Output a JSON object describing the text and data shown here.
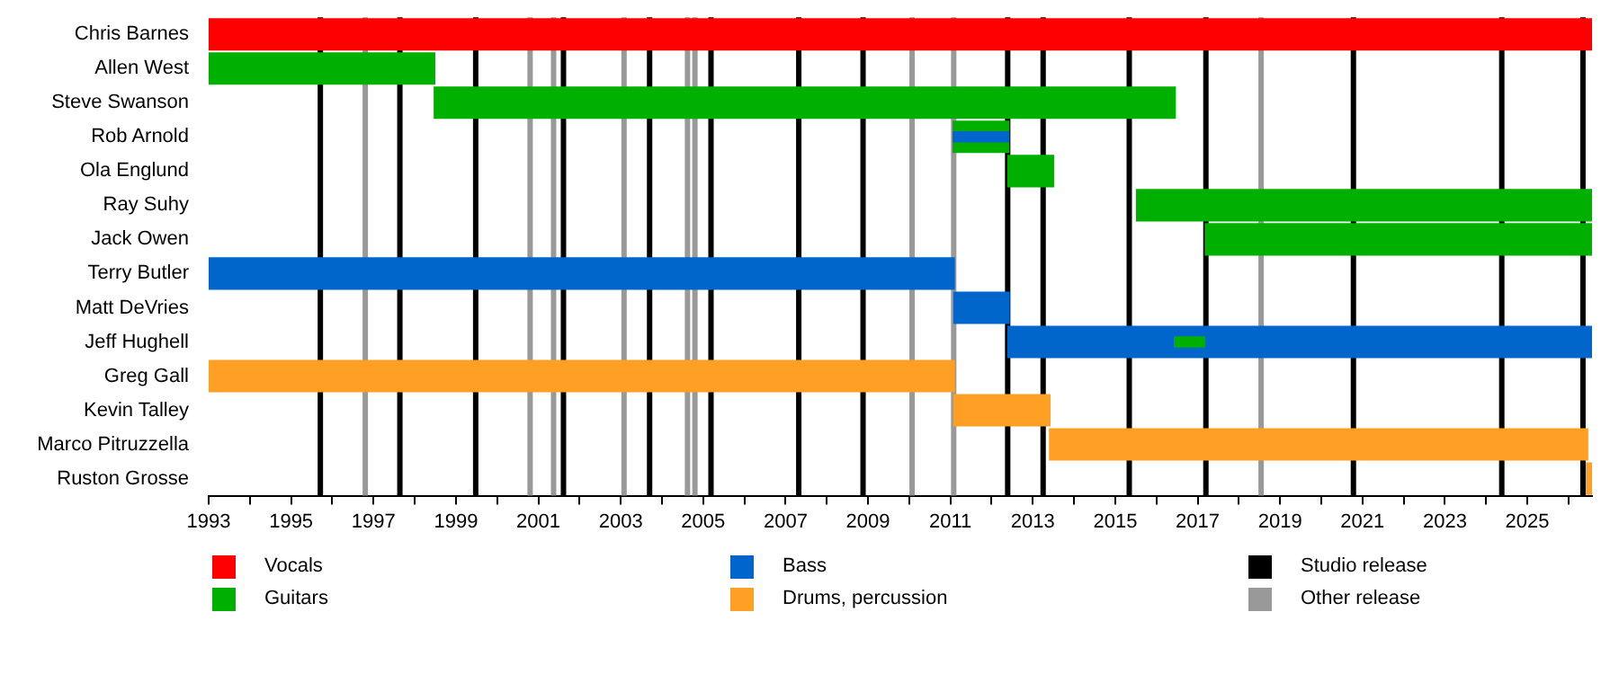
{
  "chart_data": {
    "type": "bar",
    "orientation": "horizontal",
    "categories": [
      "Chris Barnes",
      "Allen West",
      "Steve Swanson",
      "Rob Arnold",
      "Ola Englund",
      "Ray Suhy",
      "Jack Owen",
      "Terry Butler",
      "Matt DeVries",
      "Jeff Hughell",
      "Greg Gall",
      "Kevin Talley",
      "Marco Pitruzzella",
      "Ruston Grosse"
    ],
    "series": [
      {
        "name": "Vocals",
        "color": "#ff0000",
        "base": [
          1993,
          null,
          null,
          null,
          null,
          null,
          null,
          null,
          null,
          null,
          null,
          null,
          null,
          null
        ],
        "values": [
          33.57,
          null,
          null,
          null,
          null,
          null,
          null,
          null,
          null,
          null,
          null,
          null,
          null,
          null
        ]
      },
      {
        "name": "Guitars",
        "color": "#00b000",
        "base": [
          null,
          1993,
          1998.46,
          2011.05,
          2012.38,
          2015.5,
          2017.17,
          null,
          null,
          null,
          null,
          null,
          null,
          null
        ],
        "values": [
          null,
          5.5,
          18.01,
          1.38,
          1.14,
          11.07,
          9.4,
          null,
          null,
          null,
          null,
          null,
          null,
          null
        ]
      },
      {
        "name": "Bass",
        "color": "#0066cc",
        "base": [
          null,
          null,
          null,
          null,
          null,
          null,
          null,
          1993,
          2011.07,
          2012.38,
          null,
          null,
          null,
          null
        ],
        "values": [
          null,
          null,
          null,
          null,
          null,
          null,
          null,
          18.11,
          1.37,
          14.19,
          null,
          null,
          null,
          null
        ]
      },
      {
        "name": "Drums, percussion",
        "color": "#ffa024",
        "base": [
          null,
          null,
          null,
          null,
          null,
          null,
          null,
          null,
          null,
          null,
          1993,
          2011.07,
          2013.39,
          2026.42
        ],
        "values": [
          null,
          null,
          null,
          null,
          null,
          null,
          null,
          null,
          null,
          null,
          18.11,
          2.36,
          13.09,
          0.15
        ]
      },
      {
        "color": "#0066cc",
        "base": [
          null,
          null,
          null,
          2011.05,
          null,
          null,
          null,
          null,
          null,
          null,
          null,
          null,
          null,
          null
        ],
        "values": [
          null,
          null,
          null,
          1.38,
          null,
          null,
          null,
          null,
          null,
          null,
          null,
          null,
          null,
          null
        ]
      },
      {
        "color": "#00b000",
        "base": [
          null,
          null,
          null,
          null,
          null,
          null,
          null,
          null,
          null,
          2016.42,
          null,
          null,
          null,
          null
        ],
        "values": [
          null,
          null,
          null,
          null,
          null,
          null,
          null,
          null,
          null,
          0.76,
          null,
          null,
          null,
          null
        ]
      }
    ],
    "xlim": [
      1993,
      2026.57
    ],
    "xticks": [
      1993,
      {
        "value": 1994,
        "label": null
      },
      1995,
      {
        "value": 1996,
        "label": null
      },
      1997,
      {
        "value": 1998,
        "label": null
      },
      1999,
      {
        "value": 2000,
        "label": null
      },
      2001,
      {
        "value": 2002,
        "label": null
      },
      2003,
      {
        "value": 2004,
        "label": null
      },
      2005,
      {
        "value": 2006,
        "label": null
      },
      2007,
      {
        "value": 2008,
        "label": null
      },
      2009,
      {
        "value": 2010,
        "label": null
      },
      2011,
      {
        "value": 2012,
        "label": null
      },
      2013,
      {
        "value": 2014,
        "label": null
      },
      2015,
      {
        "value": 2016,
        "label": null
      },
      2017,
      {
        "value": 2018,
        "label": null
      },
      2019,
      {
        "value": 2020,
        "label": null
      },
      2021,
      {
        "value": 2022,
        "label": null
      },
      2023,
      {
        "value": 2024,
        "label": null
      },
      2025,
      {
        "value": 2026,
        "label": null
      }
    ],
    "ref_lines": [
      {
        "axis": "x",
        "value": 1995.71,
        "label": "Studio release",
        "color": "#000000"
      },
      {
        "axis": "x",
        "value": 1997.64,
        "color": "#000000"
      },
      {
        "axis": "x",
        "value": 1999.48,
        "color": "#000000"
      },
      {
        "axis": "x",
        "value": 2001.61,
        "color": "#000000"
      },
      {
        "axis": "x",
        "value": 2003.7,
        "color": "#000000"
      },
      {
        "axis": "x",
        "value": 2005.19,
        "color": "#000000"
      },
      {
        "axis": "x",
        "value": 2007.32,
        "color": "#000000"
      },
      {
        "axis": "x",
        "value": 2008.88,
        "color": "#000000"
      },
      {
        "axis": "x",
        "value": 2012.39,
        "color": "#000000"
      },
      {
        "axis": "x",
        "value": 2013.25,
        "color": "#000000"
      },
      {
        "axis": "x",
        "value": 2015.34,
        "color": "#000000"
      },
      {
        "axis": "x",
        "value": 2017.2,
        "color": "#000000"
      },
      {
        "axis": "x",
        "value": 2020.78,
        "color": "#000000"
      },
      {
        "axis": "x",
        "value": 2024.38,
        "color": "#000000"
      },
      {
        "axis": "x",
        "value": 2026.35,
        "color": "#000000"
      },
      {
        "axis": "x",
        "value": 1996.8,
        "label": "Other release",
        "color": "#999999"
      },
      {
        "axis": "x",
        "value": 2000.8,
        "color": "#999999"
      },
      {
        "axis": "x",
        "value": 2001.37,
        "color": "#999999"
      },
      {
        "axis": "x",
        "value": 2003.08,
        "color": "#999999"
      },
      {
        "axis": "x",
        "value": 2004.62,
        "color": "#999999"
      },
      {
        "axis": "x",
        "value": 2004.8,
        "color": "#999999"
      },
      {
        "axis": "x",
        "value": 2010.07,
        "color": "#999999"
      },
      {
        "axis": "x",
        "value": 2011.08,
        "color": "#999999"
      },
      {
        "axis": "x",
        "value": 2018.54,
        "color": "#999999"
      }
    ],
    "legend": "bottom"
  }
}
